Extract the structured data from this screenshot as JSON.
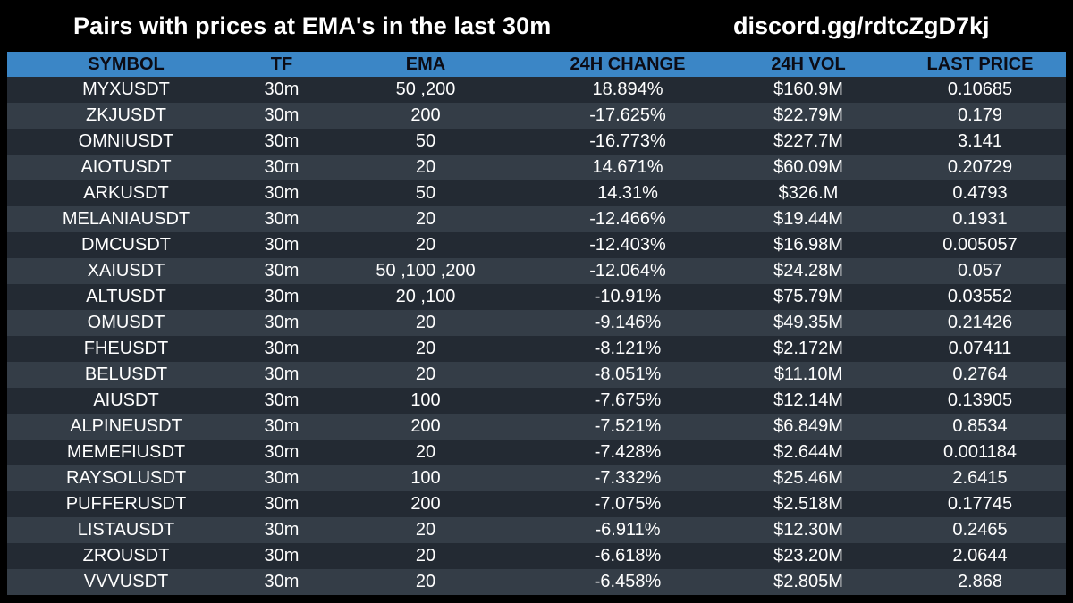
{
  "header": {
    "title": "Pairs with prices at EMA's in the last 30m",
    "invite": "discord.gg/rdtcZgD7kj"
  },
  "table": {
    "columns": [
      "SYMBOL",
      "TF",
      "EMA",
      "24H CHANGE",
      "24H VOL",
      "LAST PRICE"
    ],
    "rows": [
      [
        "MYXUSDT",
        "30m",
        "50 ,200",
        "18.894%",
        "$160.9M",
        "0.10685"
      ],
      [
        "ZKJUSDT",
        "30m",
        "200",
        "-17.625%",
        "$22.79M",
        "0.179"
      ],
      [
        "OMNIUSDT",
        "30m",
        "50",
        "-16.773%",
        "$227.7M",
        "3.141"
      ],
      [
        "AIOTUSDT",
        "30m",
        "20",
        "14.671%",
        "$60.09M",
        "0.20729"
      ],
      [
        "ARKUSDT",
        "30m",
        "50",
        "14.31%",
        "$326.M",
        "0.4793"
      ],
      [
        "MELANIAUSDT",
        "30m",
        "20",
        "-12.466%",
        "$19.44M",
        "0.1931"
      ],
      [
        "DMCUSDT",
        "30m",
        "20",
        "-12.403%",
        "$16.98M",
        "0.005057"
      ],
      [
        "XAIUSDT",
        "30m",
        "50 ,100 ,200",
        "-12.064%",
        "$24.28M",
        "0.057"
      ],
      [
        "ALTUSDT",
        "30m",
        "20 ,100",
        "-10.91%",
        "$75.79M",
        "0.03552"
      ],
      [
        "OMUSDT",
        "30m",
        "20",
        "-9.146%",
        "$49.35M",
        "0.21426"
      ],
      [
        "FHEUSDT",
        "30m",
        "20",
        "-8.121%",
        "$2.172M",
        "0.07411"
      ],
      [
        "BELUSDT",
        "30m",
        "20",
        "-8.051%",
        "$11.10M",
        "0.2764"
      ],
      [
        "AIUSDT",
        "30m",
        "100",
        "-7.675%",
        "$12.14M",
        "0.13905"
      ],
      [
        "ALPINEUSDT",
        "30m",
        "200",
        "-7.521%",
        "$6.849M",
        "0.8534"
      ],
      [
        "MEMEFIUSDT",
        "30m",
        "20",
        "-7.428%",
        "$2.644M",
        "0.001184"
      ],
      [
        "RAYSOLUSDT",
        "30m",
        "100",
        "-7.332%",
        "$25.46M",
        "2.6415"
      ],
      [
        "PUFFERUSDT",
        "30m",
        "200",
        "-7.075%",
        "$2.518M",
        "0.17745"
      ],
      [
        "LISTAUSDT",
        "30m",
        "20",
        "-6.911%",
        "$12.30M",
        "0.2465"
      ],
      [
        "ZROUSDT",
        "30m",
        "20",
        "-6.618%",
        "$23.20M",
        "2.0644"
      ],
      [
        "VVVUSDT",
        "30m",
        "20",
        "-6.458%",
        "$2.805M",
        "2.868"
      ]
    ]
  },
  "colors": {
    "background": "#000000",
    "header_row": "#3b86c6",
    "row_odd": "#232a33",
    "row_even": "#343d47",
    "text": "#ffffff"
  }
}
